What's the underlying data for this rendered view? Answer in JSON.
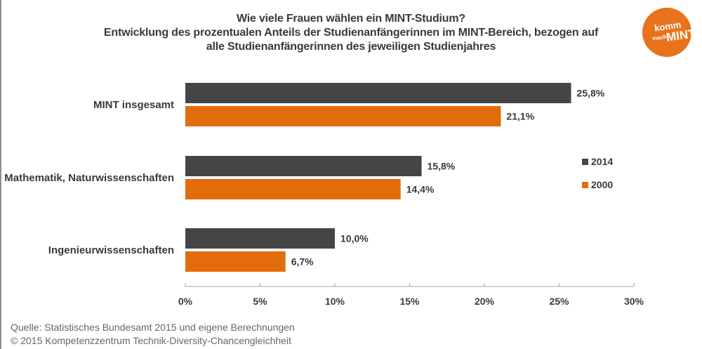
{
  "chart_data": {
    "type": "bar",
    "orientation": "horizontal",
    "title": "Wie viele Frauen wählen ein MINT-Studium?",
    "subtitle": [
      "Entwicklung des prozentualen Anteils der Studienanfängerinnen im MINT-Bereich, bezogen auf",
      "alle Studienanfängerinnen des jeweiligen Studienjahres"
    ],
    "categories": [
      "MINT insgesamt",
      "Mathematik, Naturwissenschaften",
      "Ingenieurwissenschaften"
    ],
    "series": [
      {
        "name": "2014",
        "color": "#454545",
        "values": [
          25.8,
          15.8,
          10.0
        ],
        "labels": [
          "25,8%",
          "15,8%",
          "10,0%"
        ]
      },
      {
        "name": "2000",
        "color": "#e36c0a",
        "values": [
          21.1,
          14.4,
          6.7
        ],
        "labels": [
          "21,1%",
          "14,4%",
          "6,7%"
        ]
      }
    ],
    "xlim": [
      0,
      30
    ],
    "xticks": [
      0,
      5,
      10,
      15,
      20,
      25,
      30
    ],
    "xtick_labels": [
      "0%",
      "5%",
      "10%",
      "15%",
      "20%",
      "25%",
      "30%"
    ],
    "xlabel": "",
    "ylabel": "",
    "grid": false,
    "legend_position": "right"
  },
  "logo": {
    "line1": "komm",
    "line2": "mach",
    "line3": "MINT",
    "color": "#e8731c"
  },
  "source": {
    "line1": "Quelle: Statistisches Bundesamt 2015 und eigene Berechnungen",
    "line2": "© 2015 Kompetenzzentrum  Technik-Diversity-Chancengleichheit"
  }
}
